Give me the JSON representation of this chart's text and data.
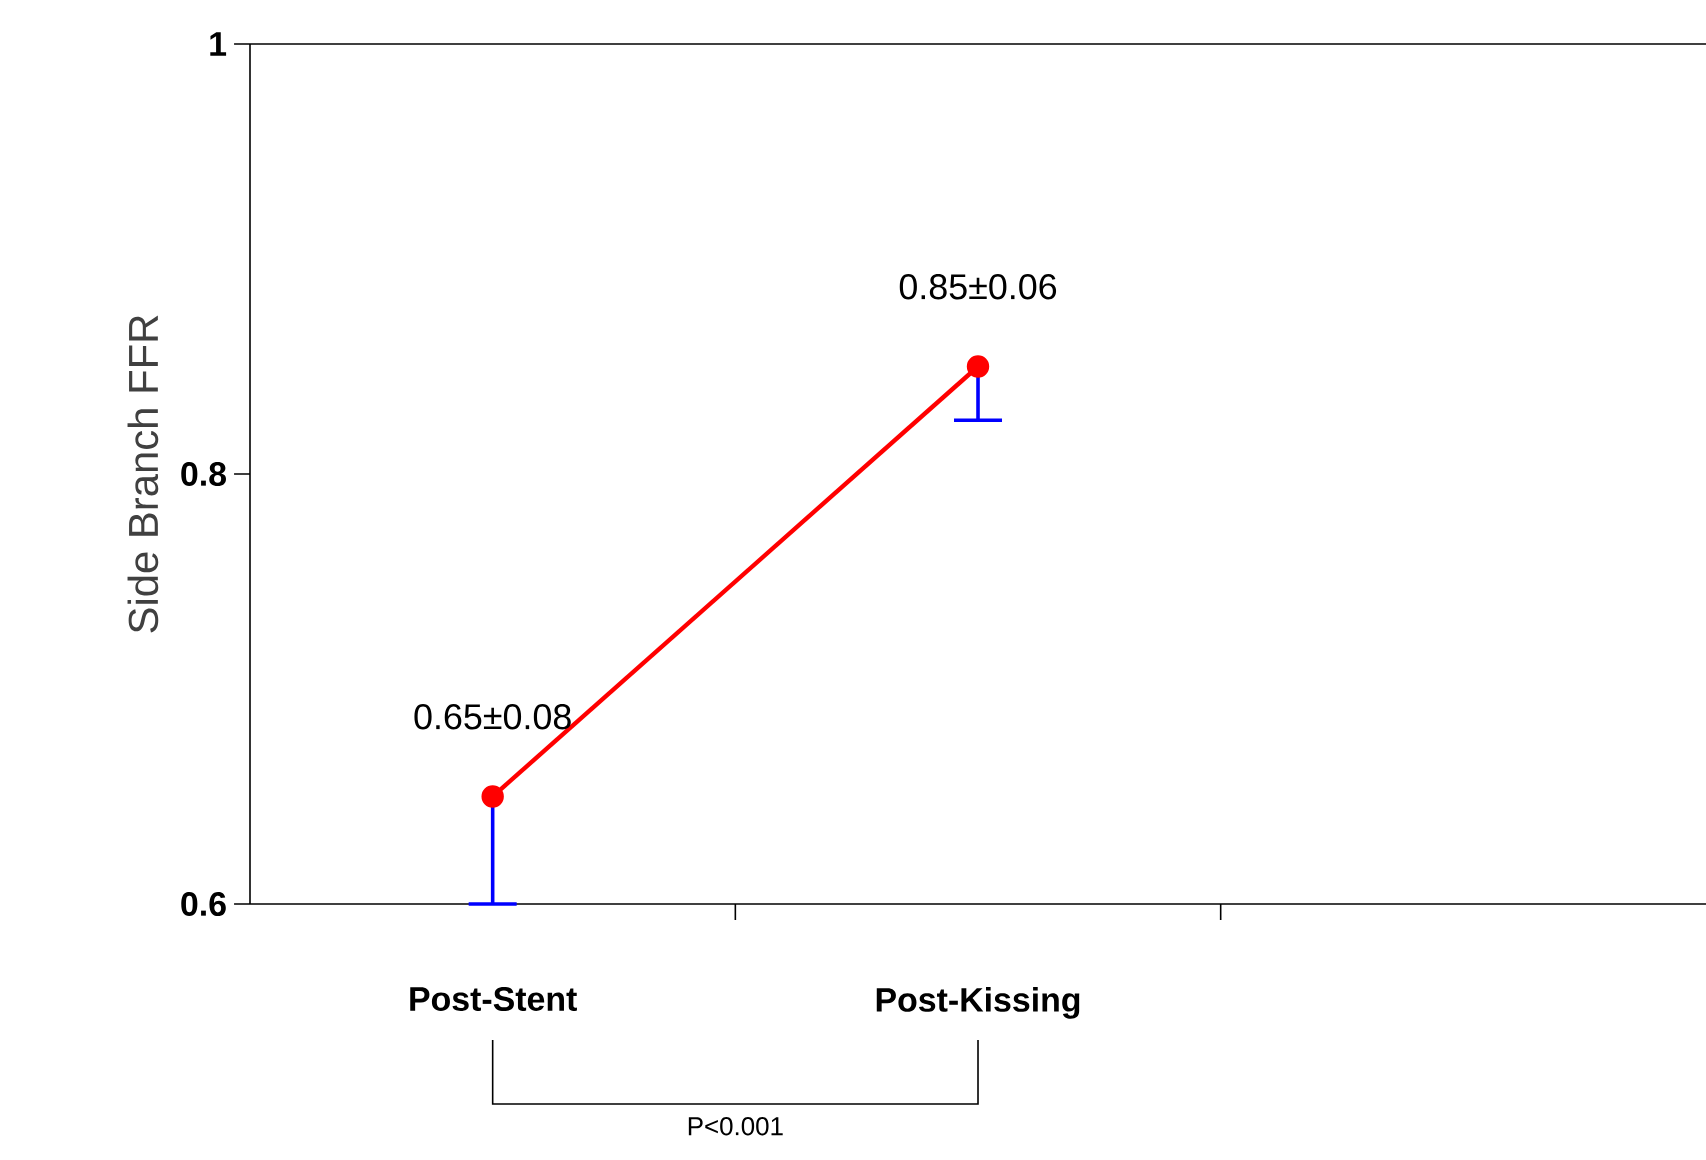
{
  "chart_data": {
    "type": "line",
    "ylabel": "Side Branch FFR",
    "categories": [
      "Post-Stent",
      "Post-Kissing"
    ],
    "series": [
      {
        "color": "#ff0000",
        "values": [
          0.65,
          0.85
        ],
        "errors": [
          [
            0.6,
            0.65
          ],
          [
            0.825,
            0.85
          ]
        ]
      }
    ],
    "ylim": [
      0.6,
      1
    ],
    "yticks": [
      0.6,
      0.8,
      1
    ],
    "marker": "circle",
    "line_style": "solid",
    "grid": false,
    "annotations": [
      {
        "text": "0.65±0.08",
        "x": "Post-Stent",
        "y": 0.65
      },
      {
        "text": "0.85±0.06",
        "x": "Post-Kissing",
        "y": 0.85
      },
      "P<0.001"
    ]
  }
}
